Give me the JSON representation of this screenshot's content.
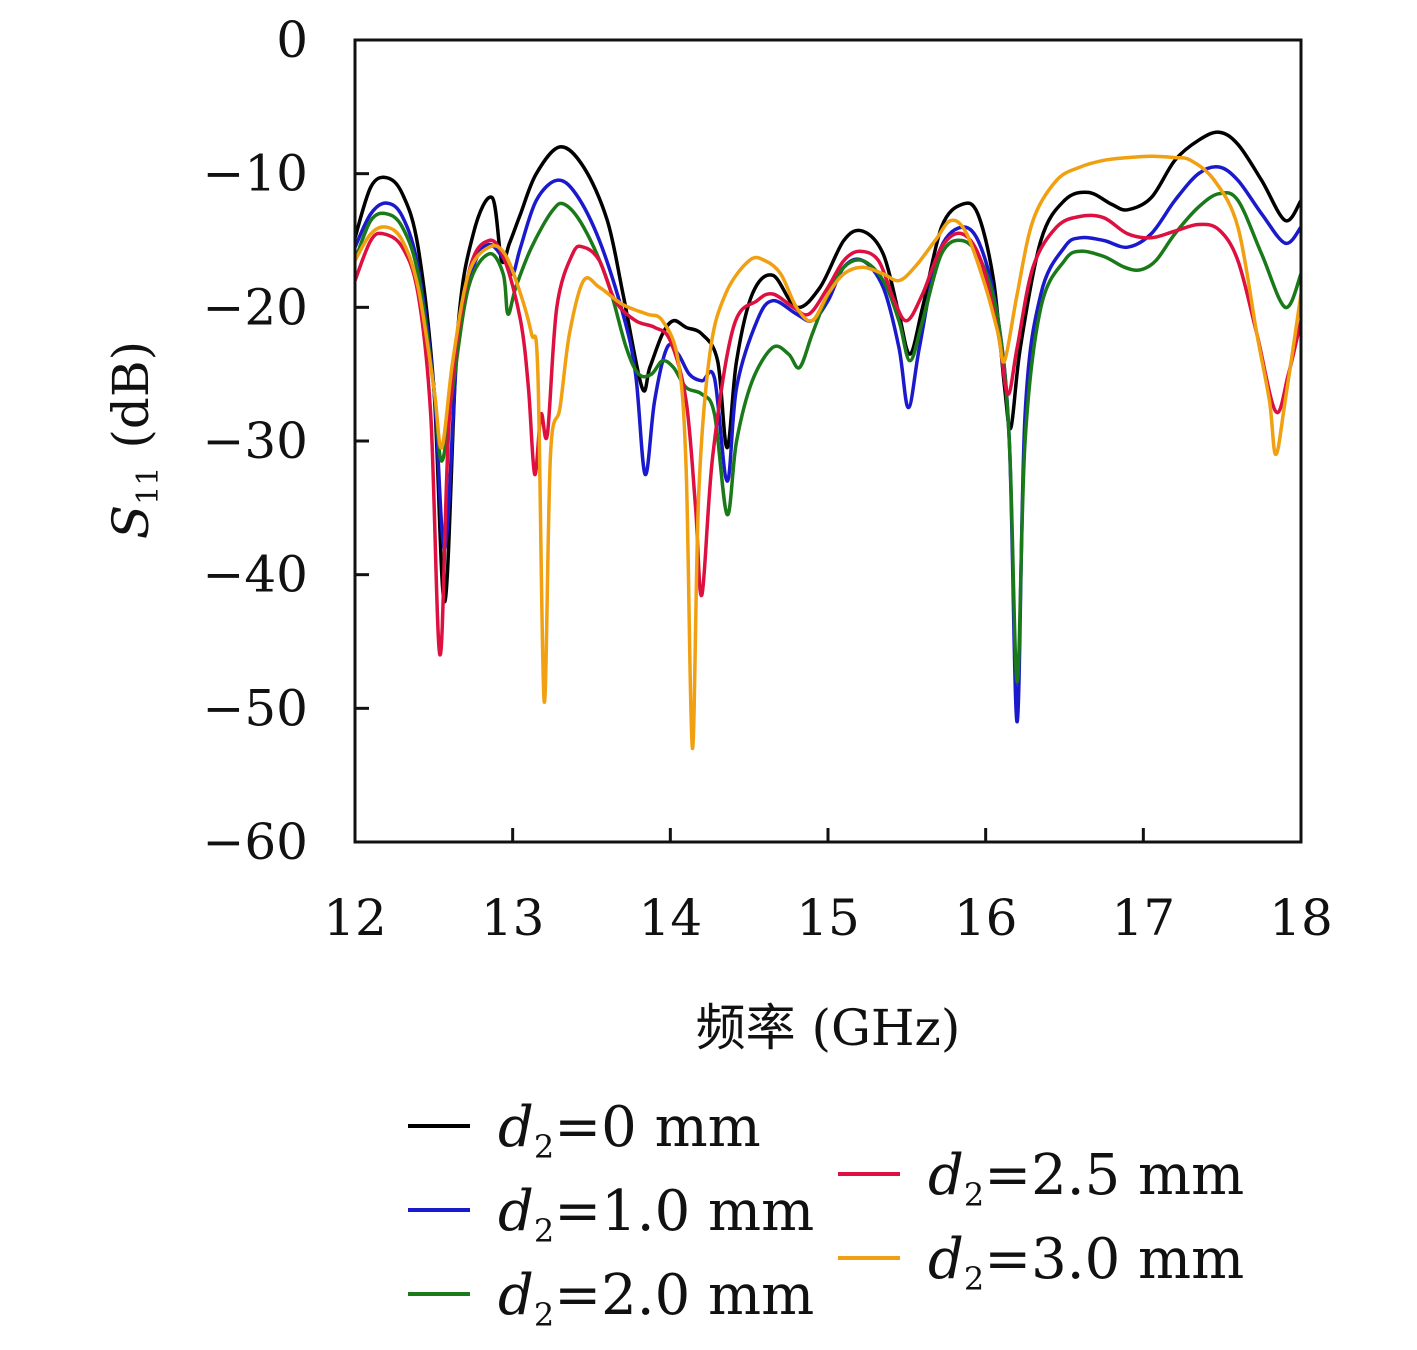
{
  "chart_data": {
    "type": "line",
    "xlabel": "频率 (GHz)",
    "ylabel": "S11 (dB)",
    "ylabel_main": "S",
    "ylabel_sub": "11",
    "ylabel_unit": "(dB)",
    "xlim": [
      12,
      18
    ],
    "ylim": [
      -60,
      0
    ],
    "xticks": [
      "12",
      "13",
      "14",
      "15",
      "16",
      "17",
      "18"
    ],
    "yticks": [
      "0",
      "−10",
      "−20",
      "−30",
      "−40",
      "−50",
      "−60"
    ],
    "grid": false,
    "legend_position": "bottom",
    "series": [
      {
        "name": "d2=0 mm",
        "legend_var": "d",
        "legend_sub": "2",
        "legend_rest": "=0 mm",
        "color": "#000000",
        "points": [
          [
            12.0,
            -14.8
          ],
          [
            12.1,
            -11.0
          ],
          [
            12.2,
            -10.3
          ],
          [
            12.3,
            -11.5
          ],
          [
            12.4,
            -15.5
          ],
          [
            12.5,
            -26.0
          ],
          [
            12.57,
            -42.0
          ],
          [
            12.65,
            -22.0
          ],
          [
            12.75,
            -14.5
          ],
          [
            12.87,
            -11.8
          ],
          [
            12.93,
            -16.5
          ],
          [
            12.98,
            -15.2
          ],
          [
            13.05,
            -13.0
          ],
          [
            13.15,
            -10.0
          ],
          [
            13.3,
            -8.0
          ],
          [
            13.45,
            -9.5
          ],
          [
            13.6,
            -13.5
          ],
          [
            13.7,
            -19.0
          ],
          [
            13.82,
            -26.0
          ],
          [
            13.87,
            -24.5
          ],
          [
            13.95,
            -22.0
          ],
          [
            14.02,
            -21.0
          ],
          [
            14.1,
            -21.5
          ],
          [
            14.2,
            -22.0
          ],
          [
            14.3,
            -24.0
          ],
          [
            14.36,
            -30.5
          ],
          [
            14.42,
            -24.0
          ],
          [
            14.52,
            -19.0
          ],
          [
            14.65,
            -17.6
          ],
          [
            14.8,
            -20.0
          ],
          [
            14.95,
            -18.5
          ],
          [
            15.1,
            -15.0
          ],
          [
            15.22,
            -14.3
          ],
          [
            15.35,
            -16.0
          ],
          [
            15.45,
            -20.5
          ],
          [
            15.52,
            -23.5
          ],
          [
            15.6,
            -20.0
          ],
          [
            15.72,
            -14.0
          ],
          [
            15.85,
            -12.3
          ],
          [
            15.95,
            -13.0
          ],
          [
            16.05,
            -18.0
          ],
          [
            16.12,
            -26.0
          ],
          [
            16.16,
            -29.0
          ],
          [
            16.22,
            -23.0
          ],
          [
            16.35,
            -15.0
          ],
          [
            16.5,
            -12.0
          ],
          [
            16.65,
            -11.4
          ],
          [
            16.8,
            -12.3
          ],
          [
            16.9,
            -12.7
          ],
          [
            17.05,
            -11.8
          ],
          [
            17.2,
            -9.0
          ],
          [
            17.35,
            -7.5
          ],
          [
            17.48,
            -6.9
          ],
          [
            17.6,
            -7.8
          ],
          [
            17.75,
            -10.5
          ],
          [
            17.9,
            -13.5
          ],
          [
            18.0,
            -12.0
          ]
        ]
      },
      {
        "name": "d2=1.0 mm",
        "legend_var": "d",
        "legend_sub": "2",
        "legend_rest": "=1.0 mm",
        "color": "#1a1acc",
        "points": [
          [
            12.0,
            -15.5
          ],
          [
            12.1,
            -13.0
          ],
          [
            12.2,
            -12.2
          ],
          [
            12.3,
            -13.2
          ],
          [
            12.4,
            -17.0
          ],
          [
            12.5,
            -26.0
          ],
          [
            12.57,
            -38.0
          ],
          [
            12.65,
            -23.0
          ],
          [
            12.75,
            -17.0
          ],
          [
            12.85,
            -15.3
          ],
          [
            12.95,
            -16.5
          ],
          [
            13.0,
            -17.5
          ],
          [
            13.05,
            -15.5
          ],
          [
            13.15,
            -12.0
          ],
          [
            13.28,
            -10.5
          ],
          [
            13.4,
            -11.5
          ],
          [
            13.55,
            -15.0
          ],
          [
            13.7,
            -20.5
          ],
          [
            13.78,
            -25.0
          ],
          [
            13.84,
            -32.5
          ],
          [
            13.9,
            -27.0
          ],
          [
            13.98,
            -23.0
          ],
          [
            14.05,
            -23.5
          ],
          [
            14.12,
            -25.0
          ],
          [
            14.2,
            -25.5
          ],
          [
            14.28,
            -25.3
          ],
          [
            14.36,
            -33.0
          ],
          [
            14.42,
            -26.0
          ],
          [
            14.55,
            -21.0
          ],
          [
            14.65,
            -19.5
          ],
          [
            14.8,
            -20.5
          ],
          [
            14.9,
            -21.0
          ],
          [
            15.0,
            -19.5
          ],
          [
            15.1,
            -17.0
          ],
          [
            15.22,
            -16.5
          ],
          [
            15.35,
            -18.5
          ],
          [
            15.45,
            -23.0
          ],
          [
            15.51,
            -27.5
          ],
          [
            15.58,
            -23.0
          ],
          [
            15.7,
            -16.0
          ],
          [
            15.85,
            -14.0
          ],
          [
            15.97,
            -15.5
          ],
          [
            16.08,
            -21.0
          ],
          [
            16.15,
            -30.0
          ],
          [
            16.2,
            -51.0
          ],
          [
            16.25,
            -28.0
          ],
          [
            16.35,
            -19.0
          ],
          [
            16.5,
            -15.5
          ],
          [
            16.6,
            -14.8
          ],
          [
            16.75,
            -15.0
          ],
          [
            16.9,
            -15.5
          ],
          [
            17.05,
            -14.5
          ],
          [
            17.2,
            -12.0
          ],
          [
            17.35,
            -10.0
          ],
          [
            17.48,
            -9.5
          ],
          [
            17.6,
            -10.5
          ],
          [
            17.75,
            -13.0
          ],
          [
            17.9,
            -15.2
          ],
          [
            18.0,
            -14.0
          ]
        ]
      },
      {
        "name": "d2=2.0 mm",
        "legend_var": "d",
        "legend_sub": "2",
        "legend_rest": "=2.0 mm",
        "color": "#1a7a1a",
        "points": [
          [
            12.0,
            -16.5
          ],
          [
            12.1,
            -13.5
          ],
          [
            12.2,
            -13.0
          ],
          [
            12.3,
            -14.0
          ],
          [
            12.4,
            -17.5
          ],
          [
            12.5,
            -26.0
          ],
          [
            12.55,
            -31.5
          ],
          [
            12.62,
            -26.0
          ],
          [
            12.72,
            -18.5
          ],
          [
            12.85,
            -16.0
          ],
          [
            12.94,
            -17.5
          ],
          [
            12.97,
            -20.5
          ],
          [
            13.02,
            -18.5
          ],
          [
            13.12,
            -15.5
          ],
          [
            13.25,
            -12.8
          ],
          [
            13.33,
            -12.3
          ],
          [
            13.45,
            -14.0
          ],
          [
            13.6,
            -18.0
          ],
          [
            13.72,
            -23.0
          ],
          [
            13.8,
            -25.0
          ],
          [
            13.88,
            -25.0
          ],
          [
            13.95,
            -24.0
          ],
          [
            14.02,
            -24.5
          ],
          [
            14.1,
            -26.0
          ],
          [
            14.2,
            -26.5
          ],
          [
            14.28,
            -28.0
          ],
          [
            14.36,
            -35.5
          ],
          [
            14.42,
            -30.0
          ],
          [
            14.52,
            -25.5
          ],
          [
            14.65,
            -23.0
          ],
          [
            14.75,
            -23.5
          ],
          [
            14.82,
            -24.5
          ],
          [
            14.9,
            -22.0
          ],
          [
            15.0,
            -19.0
          ],
          [
            15.1,
            -17.0
          ],
          [
            15.22,
            -16.5
          ],
          [
            15.35,
            -18.0
          ],
          [
            15.45,
            -21.0
          ],
          [
            15.52,
            -24.0
          ],
          [
            15.6,
            -21.0
          ],
          [
            15.72,
            -16.0
          ],
          [
            15.85,
            -15.0
          ],
          [
            15.97,
            -16.5
          ],
          [
            16.08,
            -21.0
          ],
          [
            16.15,
            -30.0
          ],
          [
            16.2,
            -48.0
          ],
          [
            16.25,
            -30.0
          ],
          [
            16.35,
            -20.0
          ],
          [
            16.5,
            -16.5
          ],
          [
            16.6,
            -15.8
          ],
          [
            16.75,
            -16.2
          ],
          [
            16.88,
            -17.0
          ],
          [
            16.98,
            -17.2
          ],
          [
            17.08,
            -16.5
          ],
          [
            17.2,
            -14.5
          ],
          [
            17.35,
            -12.5
          ],
          [
            17.48,
            -11.5
          ],
          [
            17.6,
            -12.0
          ],
          [
            17.75,
            -16.0
          ],
          [
            17.9,
            -20.0
          ],
          [
            18.0,
            -17.5
          ]
        ]
      },
      {
        "name": "d2=2.5 mm",
        "legend_var": "d",
        "legend_sub": "2",
        "legend_rest": "=2.5 mm",
        "color": "#dd1040",
        "points": [
          [
            12.0,
            -18.0
          ],
          [
            12.1,
            -15.0
          ],
          [
            12.18,
            -14.5
          ],
          [
            12.3,
            -15.5
          ],
          [
            12.4,
            -19.0
          ],
          [
            12.48,
            -28.0
          ],
          [
            12.54,
            -46.0
          ],
          [
            12.6,
            -28.0
          ],
          [
            12.72,
            -17.5
          ],
          [
            12.85,
            -15.0
          ],
          [
            12.95,
            -16.5
          ],
          [
            13.05,
            -21.0
          ],
          [
            13.1,
            -26.0
          ],
          [
            13.14,
            -32.5
          ],
          [
            13.18,
            -28.0
          ],
          [
            13.22,
            -29.5
          ],
          [
            13.28,
            -20.0
          ],
          [
            13.38,
            -16.0
          ],
          [
            13.45,
            -15.5
          ],
          [
            13.55,
            -16.5
          ],
          [
            13.65,
            -19.5
          ],
          [
            13.78,
            -21.0
          ],
          [
            13.9,
            -21.5
          ],
          [
            14.0,
            -22.5
          ],
          [
            14.1,
            -27.0
          ],
          [
            14.16,
            -35.0
          ],
          [
            14.2,
            -41.5
          ],
          [
            14.27,
            -31.0
          ],
          [
            14.4,
            -21.5
          ],
          [
            14.55,
            -19.5
          ],
          [
            14.65,
            -19.0
          ],
          [
            14.78,
            -20.0
          ],
          [
            14.88,
            -20.5
          ],
          [
            15.0,
            -18.5
          ],
          [
            15.1,
            -16.5
          ],
          [
            15.2,
            -15.8
          ],
          [
            15.32,
            -16.5
          ],
          [
            15.42,
            -19.5
          ],
          [
            15.5,
            -21.0
          ],
          [
            15.6,
            -19.0
          ],
          [
            15.72,
            -15.5
          ],
          [
            15.85,
            -14.5
          ],
          [
            15.97,
            -16.5
          ],
          [
            16.08,
            -22.0
          ],
          [
            16.14,
            -26.5
          ],
          [
            16.2,
            -23.0
          ],
          [
            16.3,
            -17.0
          ],
          [
            16.45,
            -14.0
          ],
          [
            16.6,
            -13.2
          ],
          [
            16.75,
            -13.3
          ],
          [
            16.9,
            -14.5
          ],
          [
            17.05,
            -14.8
          ],
          [
            17.2,
            -14.3
          ],
          [
            17.35,
            -13.8
          ],
          [
            17.48,
            -14.2
          ],
          [
            17.6,
            -16.5
          ],
          [
            17.72,
            -22.0
          ],
          [
            17.84,
            -27.8
          ],
          [
            17.92,
            -25.0
          ],
          [
            18.0,
            -21.0
          ]
        ]
      },
      {
        "name": "d2=3.0 mm",
        "legend_var": "d",
        "legend_sub": "2",
        "legend_rest": "=3.0 mm",
        "color": "#f0a010",
        "points": [
          [
            12.0,
            -16.5
          ],
          [
            12.1,
            -14.5
          ],
          [
            12.2,
            -14.0
          ],
          [
            12.3,
            -15.0
          ],
          [
            12.4,
            -18.5
          ],
          [
            12.5,
            -26.0
          ],
          [
            12.55,
            -30.5
          ],
          [
            12.62,
            -24.0
          ],
          [
            12.72,
            -17.5
          ],
          [
            12.85,
            -15.5
          ],
          [
            12.95,
            -16.0
          ],
          [
            13.05,
            -19.0
          ],
          [
            13.12,
            -22.0
          ],
          [
            13.16,
            -25.0
          ],
          [
            13.2,
            -49.5
          ],
          [
            13.24,
            -31.0
          ],
          [
            13.3,
            -27.5
          ],
          [
            13.36,
            -22.0
          ],
          [
            13.45,
            -18.0
          ],
          [
            13.55,
            -18.5
          ],
          [
            13.7,
            -19.8
          ],
          [
            13.85,
            -20.5
          ],
          [
            13.95,
            -21.0
          ],
          [
            14.05,
            -24.0
          ],
          [
            14.1,
            -32.0
          ],
          [
            14.14,
            -53.0
          ],
          [
            14.18,
            -34.0
          ],
          [
            14.25,
            -23.5
          ],
          [
            14.35,
            -19.0
          ],
          [
            14.5,
            -16.5
          ],
          [
            14.6,
            -16.5
          ],
          [
            14.7,
            -17.5
          ],
          [
            14.8,
            -20.0
          ],
          [
            14.9,
            -21.0
          ],
          [
            15.0,
            -19.0
          ],
          [
            15.1,
            -17.5
          ],
          [
            15.22,
            -17.0
          ],
          [
            15.35,
            -17.5
          ],
          [
            15.45,
            -18.0
          ],
          [
            15.55,
            -17.0
          ],
          [
            15.68,
            -15.0
          ],
          [
            15.78,
            -13.5
          ],
          [
            15.88,
            -14.5
          ],
          [
            16.0,
            -18.5
          ],
          [
            16.08,
            -22.0
          ],
          [
            16.12,
            -24.0
          ],
          [
            16.2,
            -19.0
          ],
          [
            16.3,
            -13.5
          ],
          [
            16.45,
            -10.5
          ],
          [
            16.6,
            -9.5
          ],
          [
            16.75,
            -9.0
          ],
          [
            16.9,
            -8.8
          ],
          [
            17.05,
            -8.7
          ],
          [
            17.2,
            -8.8
          ],
          [
            17.3,
            -9.0
          ],
          [
            17.45,
            -10.5
          ],
          [
            17.6,
            -14.0
          ],
          [
            17.72,
            -22.0
          ],
          [
            17.8,
            -27.0
          ],
          [
            17.84,
            -31.0
          ],
          [
            17.9,
            -27.0
          ],
          [
            18.0,
            -19.0
          ]
        ]
      }
    ]
  }
}
